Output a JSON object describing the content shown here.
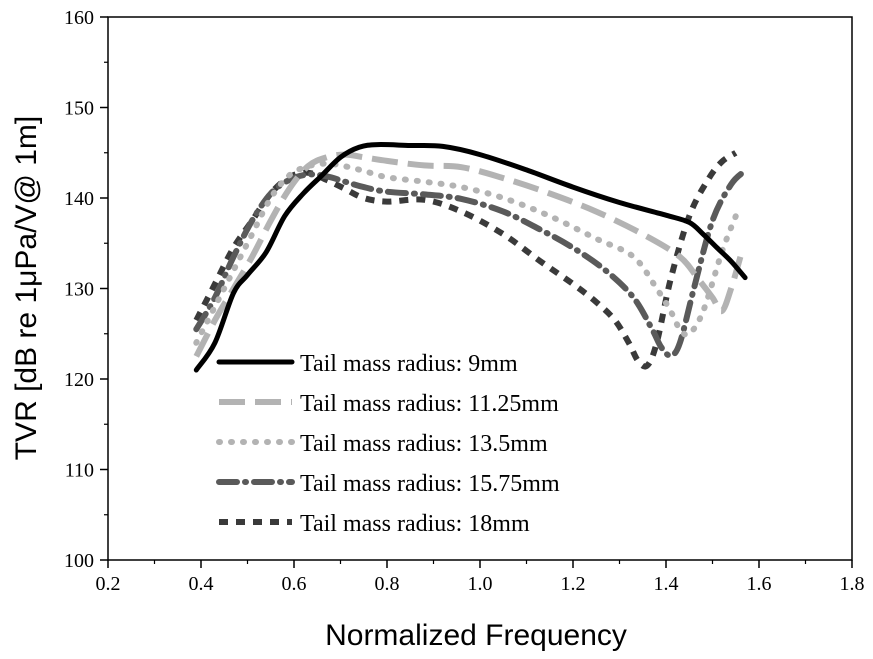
{
  "chart_data": {
    "type": "line",
    "title": "",
    "xlabel": "Normalized Frequency",
    "ylabel": "TVR [dB re 1μPa/V@ 1m]",
    "xlim": [
      0.2,
      1.8
    ],
    "ylim": [
      100,
      160
    ],
    "xticks": [
      "0.2",
      "0.4",
      "0.6",
      "0.8",
      "1.0",
      "1.2",
      "1.4",
      "1.6",
      "1.8"
    ],
    "yticks": [
      "100",
      "110",
      "120",
      "130",
      "140",
      "150",
      "160"
    ],
    "legend_position": "bottom-center",
    "series": [
      {
        "name": "Tail mass radius: 9mm",
        "style": "solid",
        "color": "#000000",
        "x": [
          0.39,
          0.43,
          0.47,
          0.5,
          0.54,
          0.58,
          0.62,
          0.66,
          0.7,
          0.74,
          0.78,
          0.85,
          0.92,
          1.0,
          1.1,
          1.2,
          1.3,
          1.4,
          1.45,
          1.48,
          1.51,
          1.54,
          1.57
        ],
        "y": [
          121.0,
          124.0,
          129.5,
          131.5,
          134.0,
          138.0,
          140.5,
          142.5,
          144.5,
          145.6,
          145.9,
          145.8,
          145.7,
          144.8,
          143.1,
          141.2,
          139.5,
          138.1,
          137.3,
          136.0,
          134.5,
          133.0,
          131.2
        ]
      },
      {
        "name": "Tail mass radius: 11.25mm",
        "style": "long-dash",
        "color": "#b3b3b3",
        "x": [
          0.39,
          0.43,
          0.47,
          0.51,
          0.55,
          0.59,
          0.63,
          0.67,
          0.71,
          0.75,
          0.8,
          0.88,
          0.96,
          1.05,
          1.15,
          1.25,
          1.35,
          1.43,
          1.47,
          1.5,
          1.52,
          1.54,
          1.56
        ],
        "y": [
          122.5,
          126.5,
          130.0,
          133.5,
          137.5,
          141.0,
          143.5,
          144.5,
          144.8,
          144.5,
          144.1,
          143.6,
          143.4,
          142.2,
          140.5,
          138.5,
          136.0,
          133.5,
          131.0,
          129.0,
          127.5,
          130.0,
          133.5
        ]
      },
      {
        "name": "Tail mass radius: 13.5mm",
        "style": "dot",
        "color": "#b3b3b3",
        "x": [
          0.39,
          0.43,
          0.47,
          0.51,
          0.55,
          0.59,
          0.63,
          0.67,
          0.71,
          0.75,
          0.8,
          0.88,
          0.96,
          1.05,
          1.15,
          1.25,
          1.33,
          1.38,
          1.41,
          1.43,
          1.45,
          1.48,
          1.52,
          1.55
        ],
        "y": [
          124.0,
          128.0,
          132.0,
          136.0,
          140.0,
          142.5,
          143.5,
          143.8,
          143.5,
          143.0,
          142.3,
          141.8,
          141.2,
          140.0,
          138.0,
          135.5,
          133.5,
          130.0,
          127.5,
          125.5,
          125.0,
          127.5,
          134.0,
          138.0
        ]
      },
      {
        "name": "Tail mass radius: 15.75mm",
        "style": "dash-dot",
        "color": "#5a5a5a",
        "x": [
          0.39,
          0.43,
          0.47,
          0.51,
          0.55,
          0.59,
          0.63,
          0.67,
          0.71,
          0.75,
          0.8,
          0.88,
          0.96,
          1.05,
          1.13,
          1.2,
          1.27,
          1.33,
          1.37,
          1.39,
          1.41,
          1.43,
          1.46,
          1.5,
          1.54,
          1.57
        ],
        "y": [
          125.5,
          129.0,
          133.5,
          137.5,
          140.5,
          142.0,
          142.6,
          142.4,
          141.8,
          141.2,
          140.7,
          140.4,
          139.9,
          138.5,
          136.5,
          134.5,
          132.0,
          129.0,
          125.5,
          123.5,
          122.6,
          124.0,
          130.0,
          137.5,
          141.5,
          143.0
        ]
      },
      {
        "name": "Tail mass radius: 18mm",
        "style": "short-dash",
        "color": "#3a3a3a",
        "x": [
          0.39,
          0.43,
          0.47,
          0.51,
          0.55,
          0.59,
          0.63,
          0.67,
          0.71,
          0.75,
          0.8,
          0.88,
          0.96,
          1.05,
          1.13,
          1.2,
          1.25,
          1.29,
          1.32,
          1.34,
          1.36,
          1.38,
          1.41,
          1.45,
          1.49,
          1.52,
          1.55
        ],
        "y": [
          126.5,
          130.5,
          134.5,
          137.5,
          140.5,
          142.3,
          142.8,
          142.0,
          141.0,
          140.0,
          139.6,
          139.8,
          138.5,
          136.0,
          133.0,
          130.5,
          128.5,
          126.5,
          124.0,
          122.0,
          121.5,
          124.0,
          131.0,
          138.0,
          142.0,
          144.0,
          145.0
        ]
      }
    ]
  }
}
